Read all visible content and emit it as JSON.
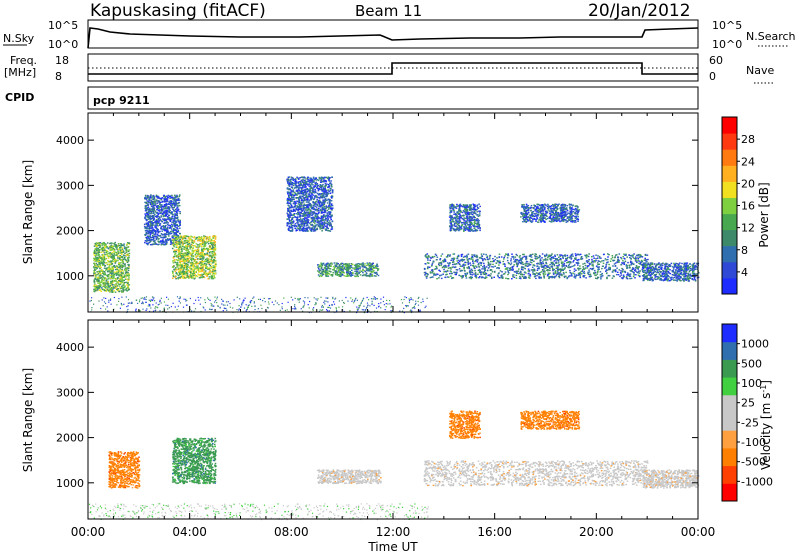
{
  "header": {
    "station": "Kapuskasing (fitACF)",
    "beam": "Beam 11",
    "date": "20/Jan/2012"
  },
  "noise_panel": {
    "left_label": "N.Sky",
    "left_ticks": [
      "10^5",
      "10^0"
    ],
    "right_label": "N.Search",
    "right_ticks": [
      "10^5",
      "10^0"
    ]
  },
  "freq_panel": {
    "left_label_1": "Freq.",
    "left_label_2": "[MHz]",
    "left_ticks": [
      "18",
      "8"
    ],
    "right_label": "Nave",
    "right_ticks": [
      "60",
      "0"
    ]
  },
  "cpid": {
    "label": "CPID",
    "program": "pcp 9211"
  },
  "colors": {
    "power_scale": [
      "#1e2cff",
      "#2f48d6",
      "#2f6fb0",
      "#3d8a6a",
      "#48a850",
      "#7fd040",
      "#f0e020",
      "#ffb020",
      "#ff7a10",
      "#ff3a10",
      "#ff0000"
    ],
    "velocity_scale": [
      "#ff0000",
      "#ff4000",
      "#ff8000",
      "#ffa040",
      "#c8c8c8",
      "#c8c8c8",
      "#40d040",
      "#3a9a50",
      "#2f6fb0",
      "#1e2cff"
    ]
  },
  "chart_data": [
    {
      "type": "heatmap",
      "name": "power",
      "xlabel": "",
      "ylabel": "Slant Range [km]",
      "x_range_hours": [
        0,
        24
      ],
      "ylim": [
        200,
        4600
      ],
      "y_ticks": [
        1000,
        2000,
        3000,
        4000
      ],
      "colorbar": {
        "label": "Power [dB]",
        "ticks": [
          4,
          8,
          12,
          16,
          20,
          24,
          28
        ],
        "range": [
          0,
          32
        ]
      },
      "echo_regions": [
        {
          "t_start": 0.2,
          "t_end": 1.6,
          "r_low": 650,
          "r_high": 1750,
          "level": 14
        },
        {
          "t_start": 2.2,
          "t_end": 3.6,
          "r_low": 1700,
          "r_high": 2800,
          "level": 5
        },
        {
          "t_start": 3.3,
          "t_end": 5.0,
          "r_low": 950,
          "r_high": 1900,
          "level": 16
        },
        {
          "t_start": 7.8,
          "t_end": 9.6,
          "r_low": 2000,
          "r_high": 3200,
          "level": 5
        },
        {
          "t_start": 9.0,
          "t_end": 11.4,
          "r_low": 1000,
          "r_high": 1300,
          "level": 10
        },
        {
          "t_start": 13.2,
          "t_end": 22.0,
          "r_low": 950,
          "r_high": 1500,
          "level": 7
        },
        {
          "t_start": 14.2,
          "t_end": 15.4,
          "r_low": 2000,
          "r_high": 2600,
          "level": 6
        },
        {
          "t_start": 17.0,
          "t_end": 19.3,
          "r_low": 2200,
          "r_high": 2600,
          "level": 5
        },
        {
          "t_start": 21.8,
          "t_end": 24.0,
          "r_low": 900,
          "r_high": 1300,
          "level": 6
        }
      ]
    },
    {
      "type": "heatmap",
      "name": "velocity",
      "xlabel": "Time UT",
      "ylabel": "Slant Range [km]",
      "x_range_hours": [
        0,
        24
      ],
      "x_tick_labels": [
        "00:00",
        "04:00",
        "08:00",
        "12:00",
        "16:00",
        "20:00",
        "00:00"
      ],
      "ylim": [
        200,
        4600
      ],
      "y_ticks": [
        1000,
        2000,
        3000,
        4000
      ],
      "colorbar": {
        "label": "Velocity [m s^-1]",
        "ticks": [
          "-1000",
          "-500",
          "-100",
          "-25",
          "25",
          "100",
          "500",
          "1000"
        ]
      },
      "echo_regions": [
        {
          "t_start": 0.8,
          "t_end": 2.0,
          "r_low": 900,
          "r_high": 1700,
          "velocity": -300
        },
        {
          "t_start": 3.3,
          "t_end": 5.0,
          "r_low": 1000,
          "r_high": 2000,
          "velocity": 150
        },
        {
          "t_start": 9.0,
          "t_end": 11.5,
          "r_low": 1000,
          "r_high": 1300,
          "velocity": 0
        },
        {
          "t_start": 13.2,
          "t_end": 22.0,
          "r_low": 950,
          "r_high": 1500,
          "velocity": 0
        },
        {
          "t_start": 14.2,
          "t_end": 15.4,
          "r_low": 2000,
          "r_high": 2600,
          "velocity": -300
        },
        {
          "t_start": 17.0,
          "t_end": 19.3,
          "r_low": 2200,
          "r_high": 2600,
          "velocity": -300
        },
        {
          "t_start": 21.8,
          "t_end": 24.0,
          "r_low": 900,
          "r_high": 1300,
          "velocity": 0
        }
      ]
    }
  ]
}
